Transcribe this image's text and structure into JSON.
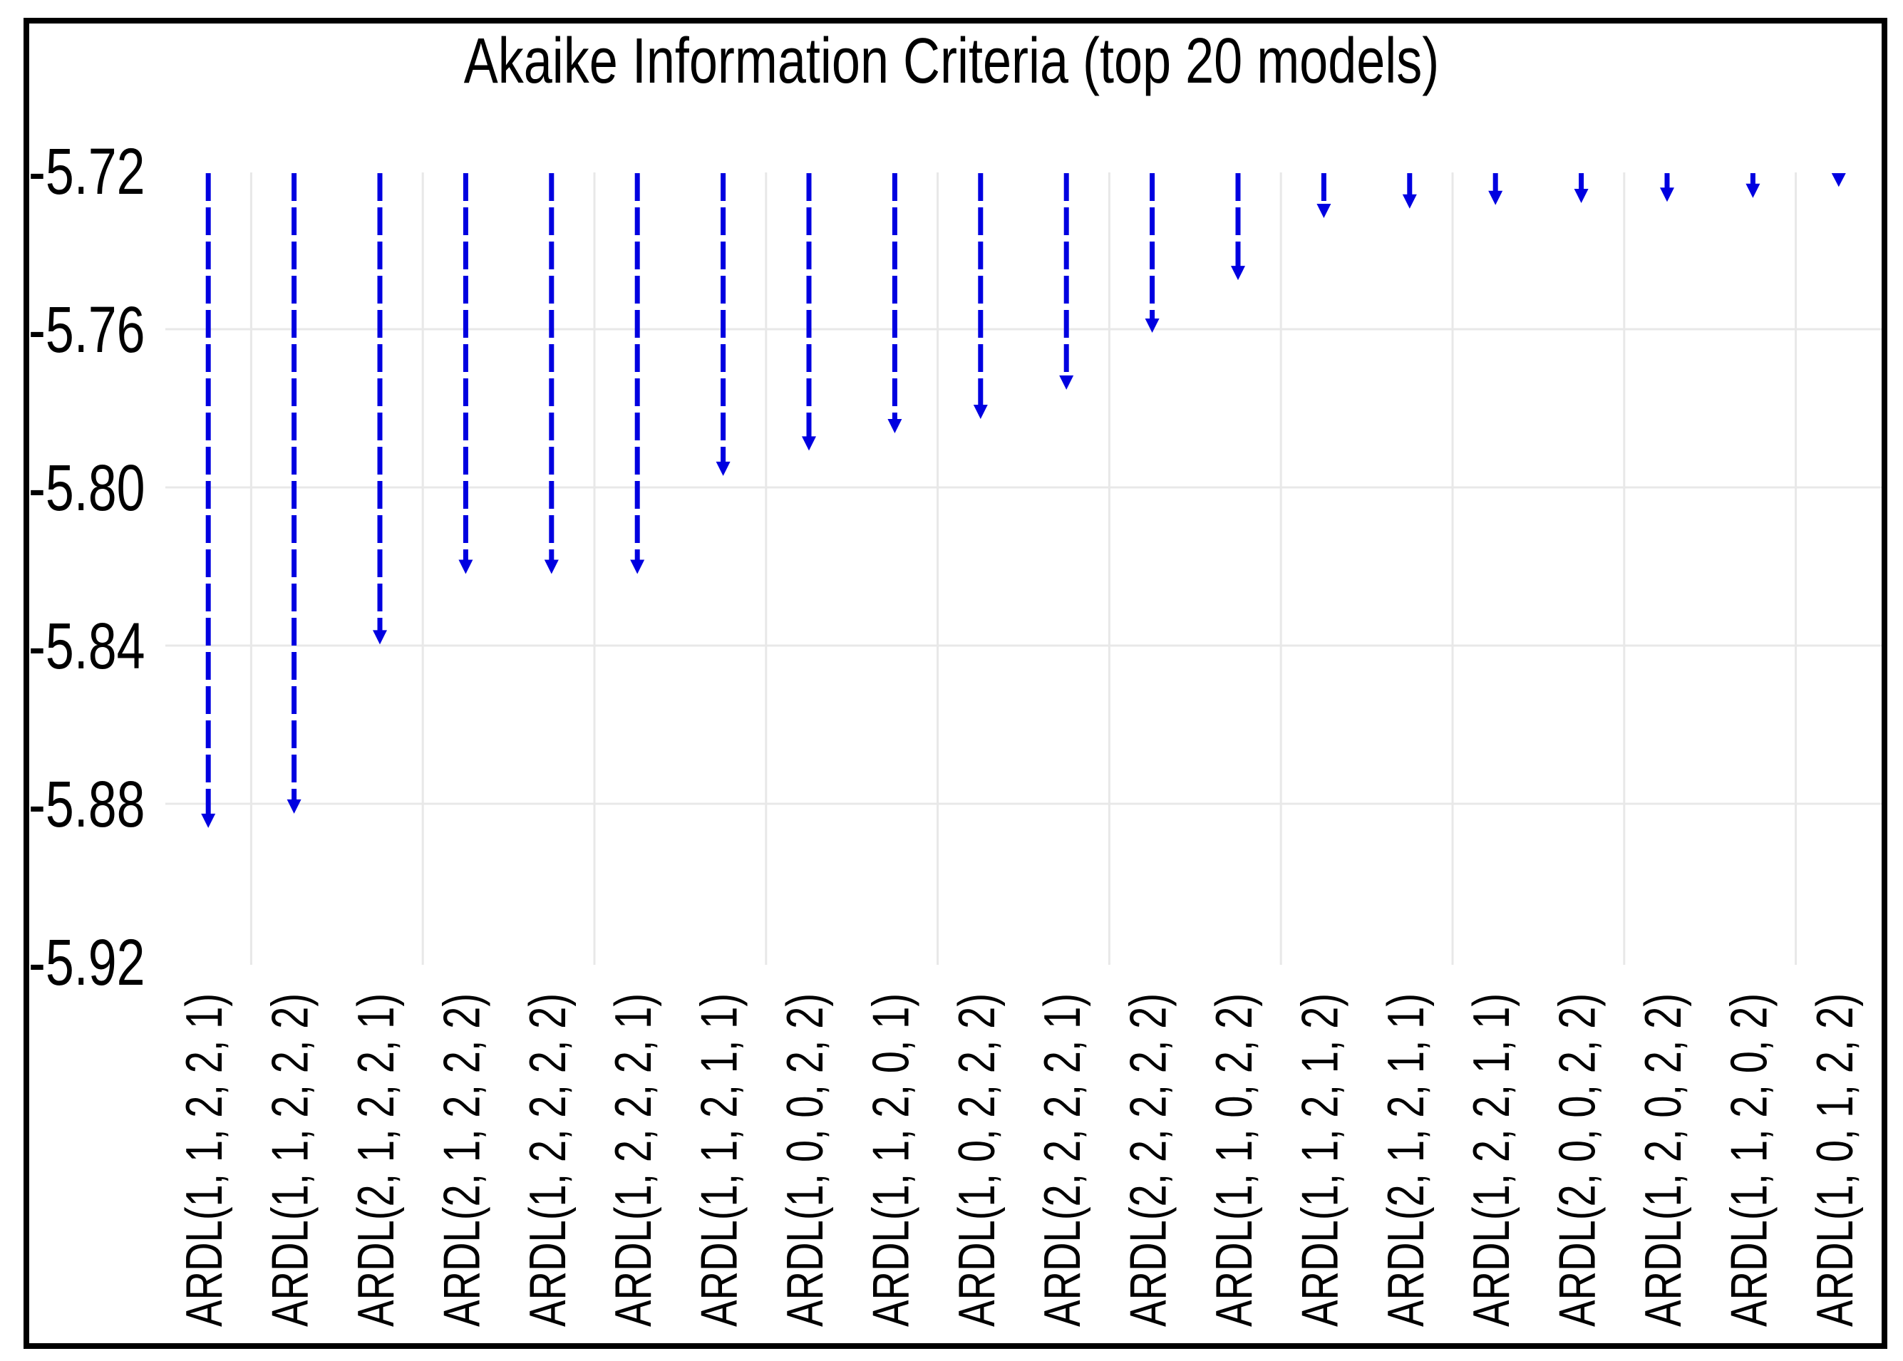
{
  "page": {
    "background": "#ffffff"
  },
  "chart_data": {
    "type": "bar",
    "variant": "eviews-arrow-drop",
    "title": "Akaike Information Criteria (top 20 models)",
    "categories": [
      "ARDL(1, 1, 2, 2, 1)",
      "ARDL(1, 1, 2, 2, 2)",
      "ARDL(2, 1, 2, 2, 1)",
      "ARDL(2, 1, 2, 2, 2)",
      "ARDL(1, 2, 2, 2, 2)",
      "ARDL(1, 2, 2, 2, 1)",
      "ARDL(1, 1, 2, 1, 1)",
      "ARDL(1, 0, 0, 2, 2)",
      "ARDL(1, 1, 2, 0, 1)",
      "ARDL(1, 0, 2, 2, 2)",
      "ARDL(2, 2, 2, 2, 1)",
      "ARDL(2, 2, 2, 2, 2)",
      "ARDL(1, 1, 0, 2, 2)",
      "ARDL(1, 1, 2, 1, 2)",
      "ARDL(2, 1, 2, 1, 1)",
      "ARDL(1, 2, 2, 1, 1)",
      "ARDL(2, 0, 0, 2, 2)",
      "ARDL(1, 2, 0, 2, 2)",
      "ARDL(1, 1, 2, 0, 2)",
      "ARDL(1, 0, 1, 2, 2)"
    ],
    "values": [
      -5.8861,
      -5.8825,
      -5.8397,
      -5.8219,
      -5.8219,
      -5.8219,
      -5.7971,
      -5.7907,
      -5.7863,
      -5.7827,
      -5.7753,
      -5.7609,
      -5.7476,
      -5.7319,
      -5.7295,
      -5.7286,
      -5.7281,
      -5.7278,
      -5.7268,
      -5.724
    ],
    "series_name": "Akaike Information Criterion",
    "arrow_start_value": -5.7215,
    "value_axis": {
      "min": -5.921,
      "max": -5.72,
      "tick_step": 0.04,
      "tick_values": [
        -5.72,
        -5.76,
        -5.8,
        -5.84,
        -5.88,
        -5.92
      ],
      "tick_labels": [
        "-5.72",
        "-5.76",
        "-5.80",
        "-5.84",
        "-5.88",
        "-5.92"
      ]
    },
    "grid": {
      "horizontal_at_labels": [
        "-5.76",
        "-5.80",
        "-5.84",
        "-5.88"
      ],
      "vertical": "between-category-pairs",
      "visible": true
    },
    "legend": "none",
    "xlabel": "",
    "ylabel": "",
    "colors": {
      "arrow": "#0000e0",
      "gridline": "#e8e8e8",
      "frame": "#000000",
      "text": "#000000",
      "background": "#ffffff"
    }
  }
}
